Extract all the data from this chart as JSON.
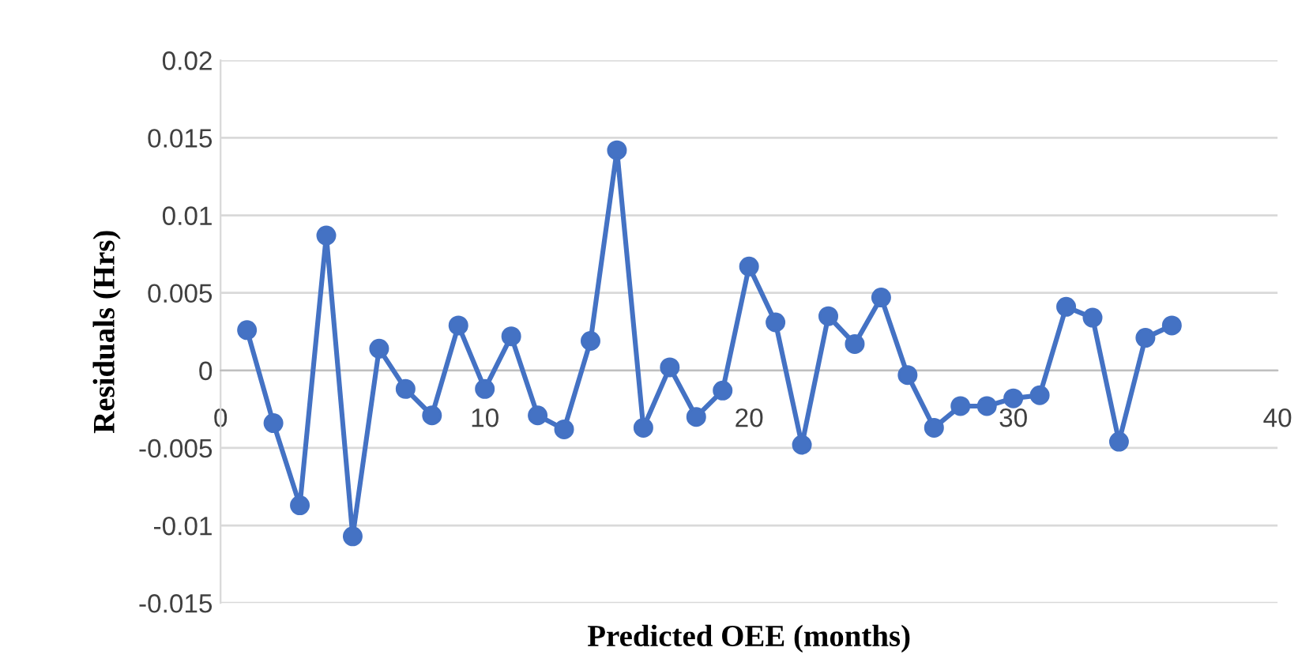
{
  "chart_data": {
    "type": "line",
    "xlabel": "Predicted OEE (months)",
    "ylabel": "Residuals (Hrs)",
    "x": [
      1,
      2,
      3,
      4,
      5,
      6,
      7,
      8,
      9,
      10,
      11,
      12,
      13,
      14,
      15,
      16,
      17,
      18,
      19,
      20,
      21,
      22,
      23,
      24,
      25,
      26,
      27,
      28,
      29,
      30,
      31,
      32,
      33,
      34,
      35,
      36
    ],
    "series": [
      {
        "color": "#4472c4",
        "values": [
          0.0026,
          -0.0034,
          -0.0087,
          0.0087,
          -0.0107,
          0.0014,
          -0.0012,
          -0.0029,
          0.0029,
          -0.0012,
          0.0022,
          -0.0029,
          -0.0038,
          0.0019,
          0.0142,
          -0.0037,
          0.0002,
          -0.003,
          -0.0013,
          0.0067,
          0.0031,
          -0.0048,
          0.0035,
          0.0017,
          0.0047,
          -0.0003,
          -0.0037,
          -0.0023,
          -0.0023,
          -0.0018,
          -0.0016,
          0.0041,
          0.0034,
          -0.0046,
          0.0021,
          0.0029
        ]
      }
    ],
    "xlim": [
      0,
      40
    ],
    "xticks": [
      0,
      10,
      20,
      30,
      40
    ],
    "ylim": [
      -0.015,
      0.02
    ],
    "yticks": [
      {
        "value": -0.015,
        "label": "-0.015"
      },
      {
        "value": -0.01,
        "label": "-0.01"
      },
      {
        "value": -0.005,
        "label": "-0.005"
      },
      0,
      0.005,
      0.01,
      0.015,
      0.02
    ],
    "grid": "y",
    "marker": "circle",
    "line_style": "solid"
  }
}
